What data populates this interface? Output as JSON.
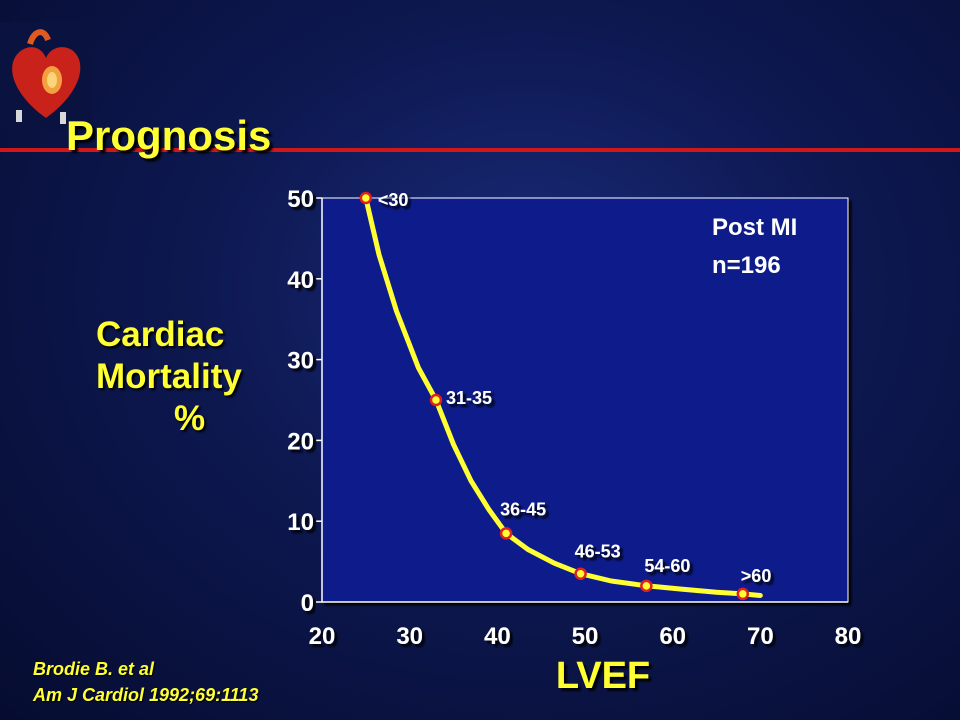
{
  "slide": {
    "title": "Prognosis",
    "y_title_lines": [
      "Cardiac",
      "Mortality",
      "%"
    ],
    "citation_lines": [
      "Brodie B. et al",
      "Am J Cardiol 1992;69:1113"
    ],
    "accent_color": "#ffff33",
    "rule_color": "#d01818",
    "logo_icon": "heart-logo-icon"
  },
  "chart_data": {
    "type": "line",
    "xlabel": "LVEF",
    "ylabel": "Cardiac Mortality %",
    "xlim": [
      20,
      80
    ],
    "ylim": [
      0,
      50
    ],
    "x_ticks": [
      "20",
      "30",
      "40",
      "50",
      "60",
      "70",
      "80"
    ],
    "y_ticks": [
      "0",
      "10",
      "20",
      "30",
      "40",
      "50"
    ],
    "points": [
      {
        "x": 25,
        "y": 50,
        "label": "<30"
      },
      {
        "x": 33,
        "y": 25,
        "label": "31-35"
      },
      {
        "x": 41,
        "y": 8.5,
        "label": "36-45"
      },
      {
        "x": 49.5,
        "y": 3.5,
        "label": "46-53"
      },
      {
        "x": 57,
        "y": 2,
        "label": "54-60"
      },
      {
        "x": 68,
        "y": 1,
        "label": ">60"
      }
    ],
    "curve": [
      [
        25,
        50
      ],
      [
        26.5,
        43
      ],
      [
        28.5,
        36
      ],
      [
        31,
        29
      ],
      [
        33,
        25
      ],
      [
        35,
        19.5
      ],
      [
        37,
        15
      ],
      [
        39,
        11.5
      ],
      [
        41,
        8.5
      ],
      [
        43.5,
        6.5
      ],
      [
        46.5,
        4.8
      ],
      [
        49.5,
        3.5
      ],
      [
        53,
        2.6
      ],
      [
        57,
        2
      ],
      [
        61,
        1.6
      ],
      [
        65,
        1.2
      ],
      [
        68,
        1
      ],
      [
        70,
        0.8
      ]
    ],
    "annotations": [
      "Post MI",
      "n=196"
    ],
    "grid": false,
    "plot_background": "#0c1a8a",
    "line_color": "#ffff33",
    "marker_color": "#ffff33",
    "marker_edge_color": "#e02020"
  }
}
